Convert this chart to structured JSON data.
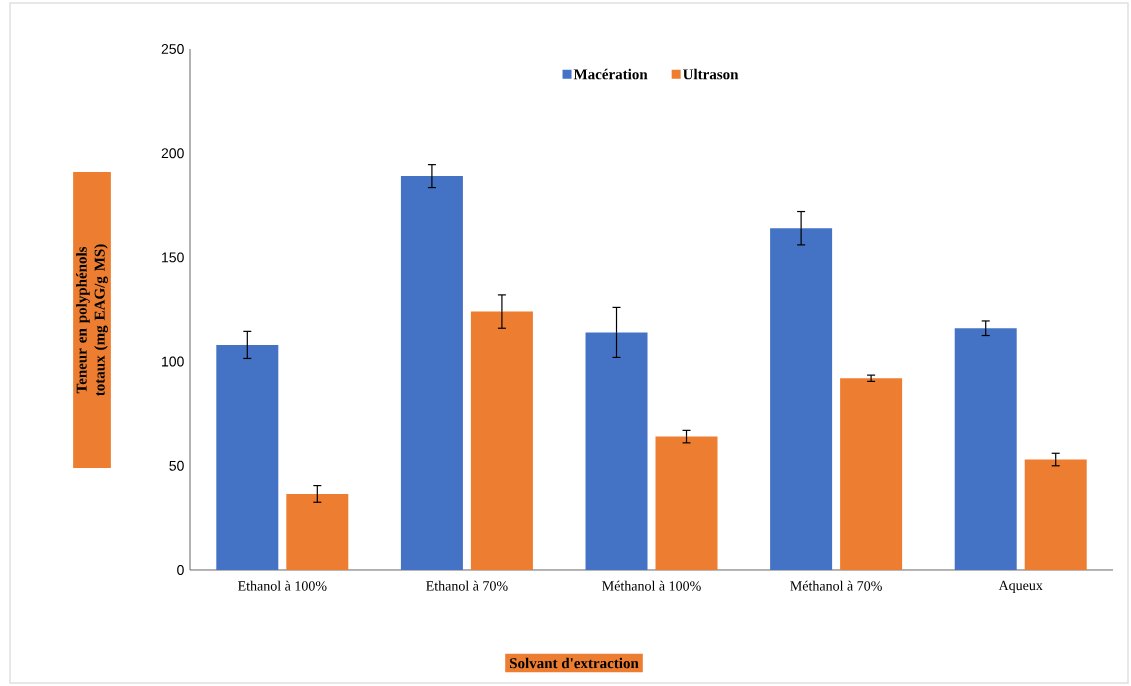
{
  "chart_data": {
    "type": "bar",
    "categories": [
      "Ethanol à 100%",
      "Ethanol à 70%",
      "Méthanol à 100%",
      "Méthanol à 70%",
      "Aqueux"
    ],
    "series": [
      {
        "name": "Macération",
        "color": "#4472c4",
        "values": [
          108,
          189,
          114,
          164,
          116
        ],
        "errors": [
          6.5,
          5.5,
          12,
          8,
          3.5
        ]
      },
      {
        "name": "Ultrason",
        "color": "#ed7d31",
        "values": [
          36.5,
          124,
          64,
          92,
          53
        ],
        "errors": [
          4,
          8,
          3,
          1.5,
          3
        ]
      }
    ],
    "xlabel": "Solvant d'extraction",
    "ylabel": "Teneur en polyphénols totaux (mg EAG/g MS)",
    "ylim": [
      0,
      250
    ],
    "yticks": [
      0,
      50,
      100,
      150,
      200,
      250
    ],
    "legend": "top"
  }
}
